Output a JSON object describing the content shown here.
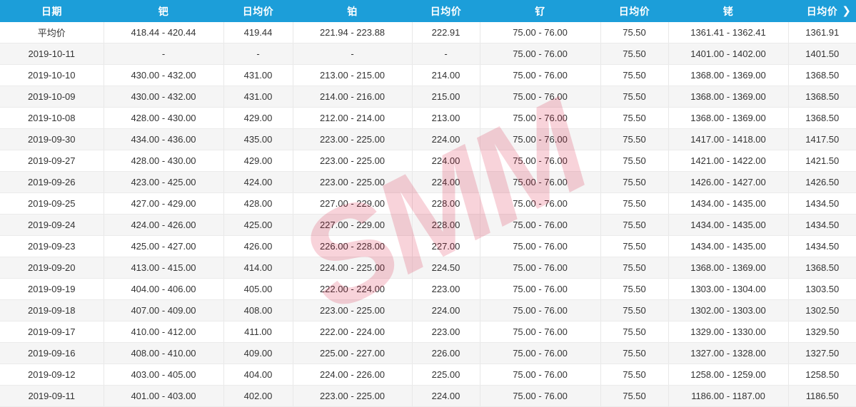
{
  "watermark": "SMM",
  "icons": {
    "chevron_right": "❯"
  },
  "colors": {
    "header_bg": "#1c9ed9",
    "header_text": "#ffffff",
    "row_bg": "#ffffff",
    "row_alt_bg": "#f5f5f5",
    "border": "#e8e8e8",
    "text": "#333333",
    "watermark_red": "rgba(214,10,50,0.18)"
  },
  "table": {
    "columns": [
      "日期",
      "钯",
      "日均价",
      "铂",
      "日均价",
      "钌",
      "日均价",
      "铑",
      "日均价"
    ],
    "rows": [
      [
        "平均价",
        "418.44 - 420.44",
        "419.44",
        "221.94 - 223.88",
        "222.91",
        "75.00 - 76.00",
        "75.50",
        "1361.41 - 1362.41",
        "1361.91"
      ],
      [
        "2019-10-11",
        "-",
        "-",
        "-",
        "-",
        "75.00 - 76.00",
        "75.50",
        "1401.00 - 1402.00",
        "1401.50"
      ],
      [
        "2019-10-10",
        "430.00 - 432.00",
        "431.00",
        "213.00 - 215.00",
        "214.00",
        "75.00 - 76.00",
        "75.50",
        "1368.00 - 1369.00",
        "1368.50"
      ],
      [
        "2019-10-09",
        "430.00 - 432.00",
        "431.00",
        "214.00 - 216.00",
        "215.00",
        "75.00 - 76.00",
        "75.50",
        "1368.00 - 1369.00",
        "1368.50"
      ],
      [
        "2019-10-08",
        "428.00 - 430.00",
        "429.00",
        "212.00 - 214.00",
        "213.00",
        "75.00 - 76.00",
        "75.50",
        "1368.00 - 1369.00",
        "1368.50"
      ],
      [
        "2019-09-30",
        "434.00 - 436.00",
        "435.00",
        "223.00 - 225.00",
        "224.00",
        "75.00 - 76.00",
        "75.50",
        "1417.00 - 1418.00",
        "1417.50"
      ],
      [
        "2019-09-27",
        "428.00 - 430.00",
        "429.00",
        "223.00 - 225.00",
        "224.00",
        "75.00 - 76.00",
        "75.50",
        "1421.00 - 1422.00",
        "1421.50"
      ],
      [
        "2019-09-26",
        "423.00 - 425.00",
        "424.00",
        "223.00 - 225.00",
        "224.00",
        "75.00 - 76.00",
        "75.50",
        "1426.00 - 1427.00",
        "1426.50"
      ],
      [
        "2019-09-25",
        "427.00 - 429.00",
        "428.00",
        "227.00 - 229.00",
        "228.00",
        "75.00 - 76.00",
        "75.50",
        "1434.00 - 1435.00",
        "1434.50"
      ],
      [
        "2019-09-24",
        "424.00 - 426.00",
        "425.00",
        "227.00 - 229.00",
        "228.00",
        "75.00 - 76.00",
        "75.50",
        "1434.00 - 1435.00",
        "1434.50"
      ],
      [
        "2019-09-23",
        "425.00 - 427.00",
        "426.00",
        "226.00 - 228.00",
        "227.00",
        "75.00 - 76.00",
        "75.50",
        "1434.00 - 1435.00",
        "1434.50"
      ],
      [
        "2019-09-20",
        "413.00 - 415.00",
        "414.00",
        "224.00 - 225.00",
        "224.50",
        "75.00 - 76.00",
        "75.50",
        "1368.00 - 1369.00",
        "1368.50"
      ],
      [
        "2019-09-19",
        "404.00 - 406.00",
        "405.00",
        "222.00 - 224.00",
        "223.00",
        "75.00 - 76.00",
        "75.50",
        "1303.00 - 1304.00",
        "1303.50"
      ],
      [
        "2019-09-18",
        "407.00 - 409.00",
        "408.00",
        "223.00 - 225.00",
        "224.00",
        "75.00 - 76.00",
        "75.50",
        "1302.00 - 1303.00",
        "1302.50"
      ],
      [
        "2019-09-17",
        "410.00 - 412.00",
        "411.00",
        "222.00 - 224.00",
        "223.00",
        "75.00 - 76.00",
        "75.50",
        "1329.00 - 1330.00",
        "1329.50"
      ],
      [
        "2019-09-16",
        "408.00 - 410.00",
        "409.00",
        "225.00 - 227.00",
        "226.00",
        "75.00 - 76.00",
        "75.50",
        "1327.00 - 1328.00",
        "1327.50"
      ],
      [
        "2019-09-12",
        "403.00 - 405.00",
        "404.00",
        "224.00 - 226.00",
        "225.00",
        "75.00 - 76.00",
        "75.50",
        "1258.00 - 1259.00",
        "1258.50"
      ],
      [
        "2019-09-11",
        "401.00 - 403.00",
        "402.00",
        "223.00 - 225.00",
        "224.00",
        "75.00 - 76.00",
        "75.50",
        "1186.00 - 1187.00",
        "1186.50"
      ]
    ]
  }
}
